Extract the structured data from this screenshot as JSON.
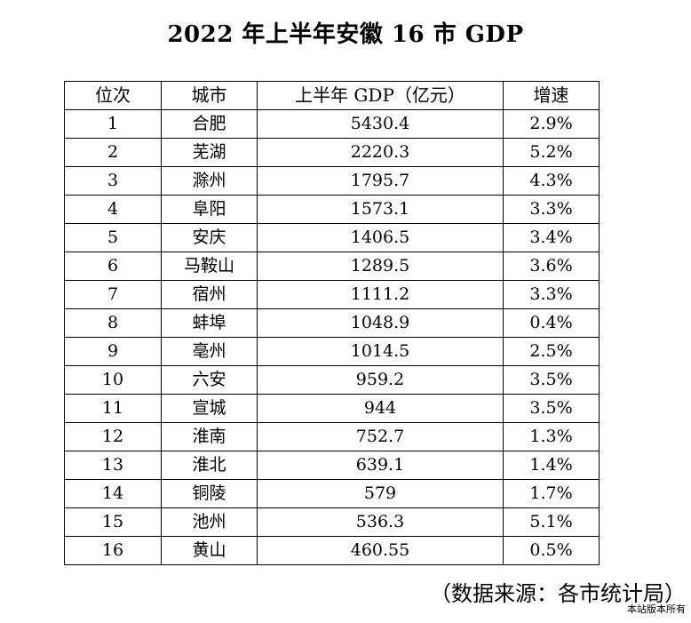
{
  "title": "2022 年上半年安徽 16 市 GDP",
  "table": {
    "headers": {
      "rank": "位次",
      "city": "城市",
      "gdp": "上半年 GDP（亿元）",
      "growth": "增速"
    },
    "rows": [
      {
        "rank": "1",
        "city": "合肥",
        "gdp": "5430.4",
        "growth": "2.9%"
      },
      {
        "rank": "2",
        "city": "芜湖",
        "gdp": "2220.3",
        "growth": "5.2%"
      },
      {
        "rank": "3",
        "city": "滁州",
        "gdp": "1795.7",
        "growth": "4.3%"
      },
      {
        "rank": "4",
        "city": "阜阳",
        "gdp": "1573.1",
        "growth": "3.3%"
      },
      {
        "rank": "5",
        "city": "安庆",
        "gdp": "1406.5",
        "growth": "3.4%"
      },
      {
        "rank": "6",
        "city": "马鞍山",
        "gdp": "1289.5",
        "growth": "3.6%"
      },
      {
        "rank": "7",
        "city": "宿州",
        "gdp": "1111.2",
        "growth": "3.3%"
      },
      {
        "rank": "8",
        "city": "蚌埠",
        "gdp": "1048.9",
        "growth": "0.4%"
      },
      {
        "rank": "9",
        "city": "亳州",
        "gdp": "1014.5",
        "growth": "2.5%"
      },
      {
        "rank": "10",
        "city": "六安",
        "gdp": "959.2",
        "growth": "3.5%"
      },
      {
        "rank": "11",
        "city": "宣城",
        "gdp": "944",
        "growth": "3.5%"
      },
      {
        "rank": "12",
        "city": "淮南",
        "gdp": "752.7",
        "growth": "1.3%"
      },
      {
        "rank": "13",
        "city": "淮北",
        "gdp": "639.1",
        "growth": "1.4%"
      },
      {
        "rank": "14",
        "city": "铜陵",
        "gdp": "579",
        "growth": "1.7%"
      },
      {
        "rank": "15",
        "city": "池州",
        "gdp": "536.3",
        "growth": "5.1%"
      },
      {
        "rank": "16",
        "city": "黄山",
        "gdp": "460.55",
        "growth": "0.5%"
      }
    ]
  },
  "source": "（数据来源：各市统计局）",
  "watermark": "本站版本所有"
}
